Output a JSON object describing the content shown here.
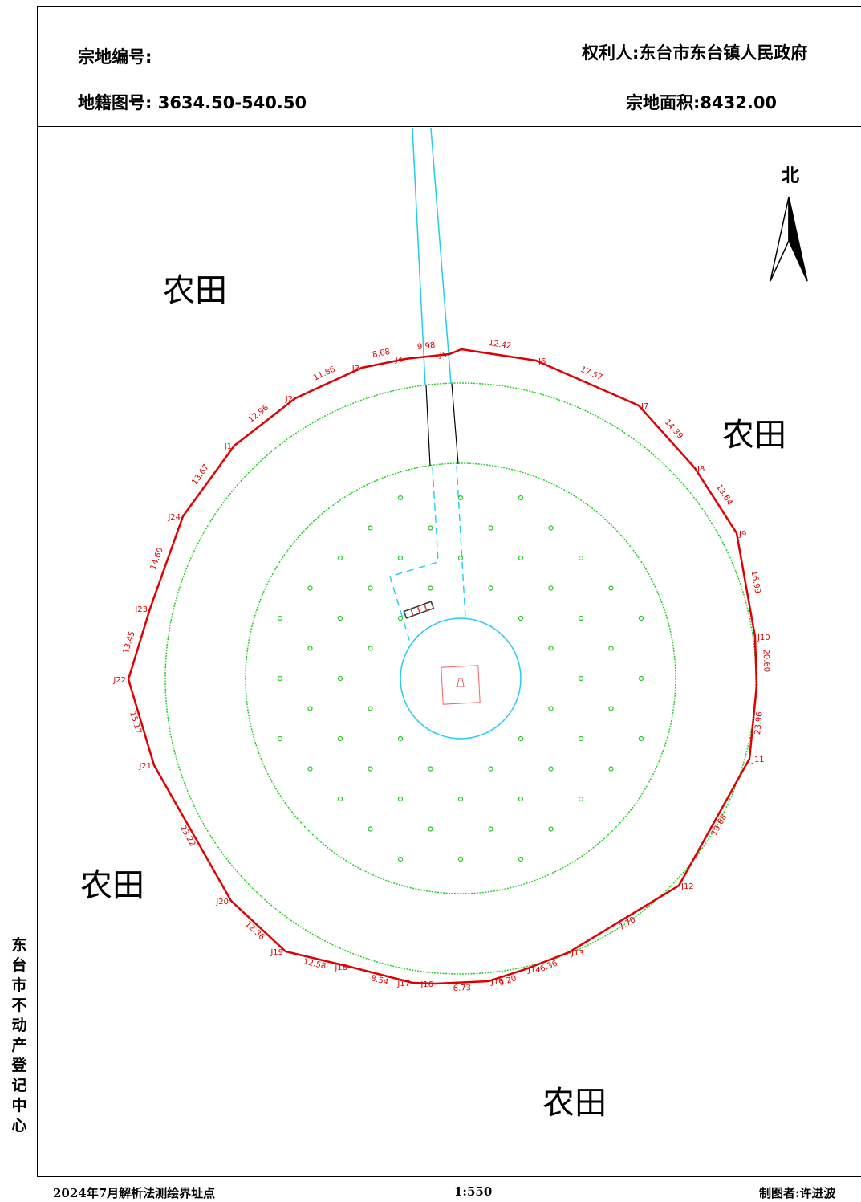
{
  "header": {
    "parcel_no_label": "宗地编号:",
    "owner": "权利人:东台市东台镇人民政府",
    "map_no": "地籍图号: 3634.50-540.50",
    "area": "宗地面积:8432.00"
  },
  "side_text": [
    "东",
    "台",
    "市",
    "不",
    "动",
    "产",
    "登",
    "记",
    "中",
    "心"
  ],
  "footer": {
    "left": "2024年7月解析法测绘界址点",
    "scale": "1:550",
    "author": "制图者:许进波"
  },
  "map": {
    "north_label": "北",
    "landuse_labels": [
      "农田",
      "农田",
      "农田",
      "农田"
    ],
    "colors": {
      "boundary": "#e00000",
      "vegetation": "#22cc22",
      "water_road": "#22ccee",
      "frame": "#000000"
    },
    "vertices": [
      {
        "id": "J1"
      },
      {
        "id": "J2"
      },
      {
        "id": "J3"
      },
      {
        "id": "J4"
      },
      {
        "id": "J5"
      },
      {
        "id": "J6"
      },
      {
        "id": "J7"
      },
      {
        "id": "J8"
      },
      {
        "id": "J9"
      },
      {
        "id": "J10"
      },
      {
        "id": "J11"
      },
      {
        "id": "J12"
      },
      {
        "id": "J13"
      },
      {
        "id": "J14"
      },
      {
        "id": "J15"
      },
      {
        "id": "J16"
      },
      {
        "id": "J17"
      },
      {
        "id": "J18"
      },
      {
        "id": "J19"
      },
      {
        "id": "J20"
      },
      {
        "id": "J21"
      },
      {
        "id": "J22"
      },
      {
        "id": "J23"
      },
      {
        "id": "J24"
      }
    ],
    "edges": [
      "12.96",
      "11.86",
      "8.68",
      "9.98",
      "",
      "12.42",
      "17.57",
      "14.39",
      "13.64",
      "16.99",
      "20.60",
      "23.96",
      "19.68",
      "7.70",
      "6.36",
      "9.20",
      "6.73",
      "",
      "8.54",
      "12.58",
      "12.36",
      "23.22",
      "15.17",
      "13.45",
      "14.60",
      "13.67"
    ]
  }
}
